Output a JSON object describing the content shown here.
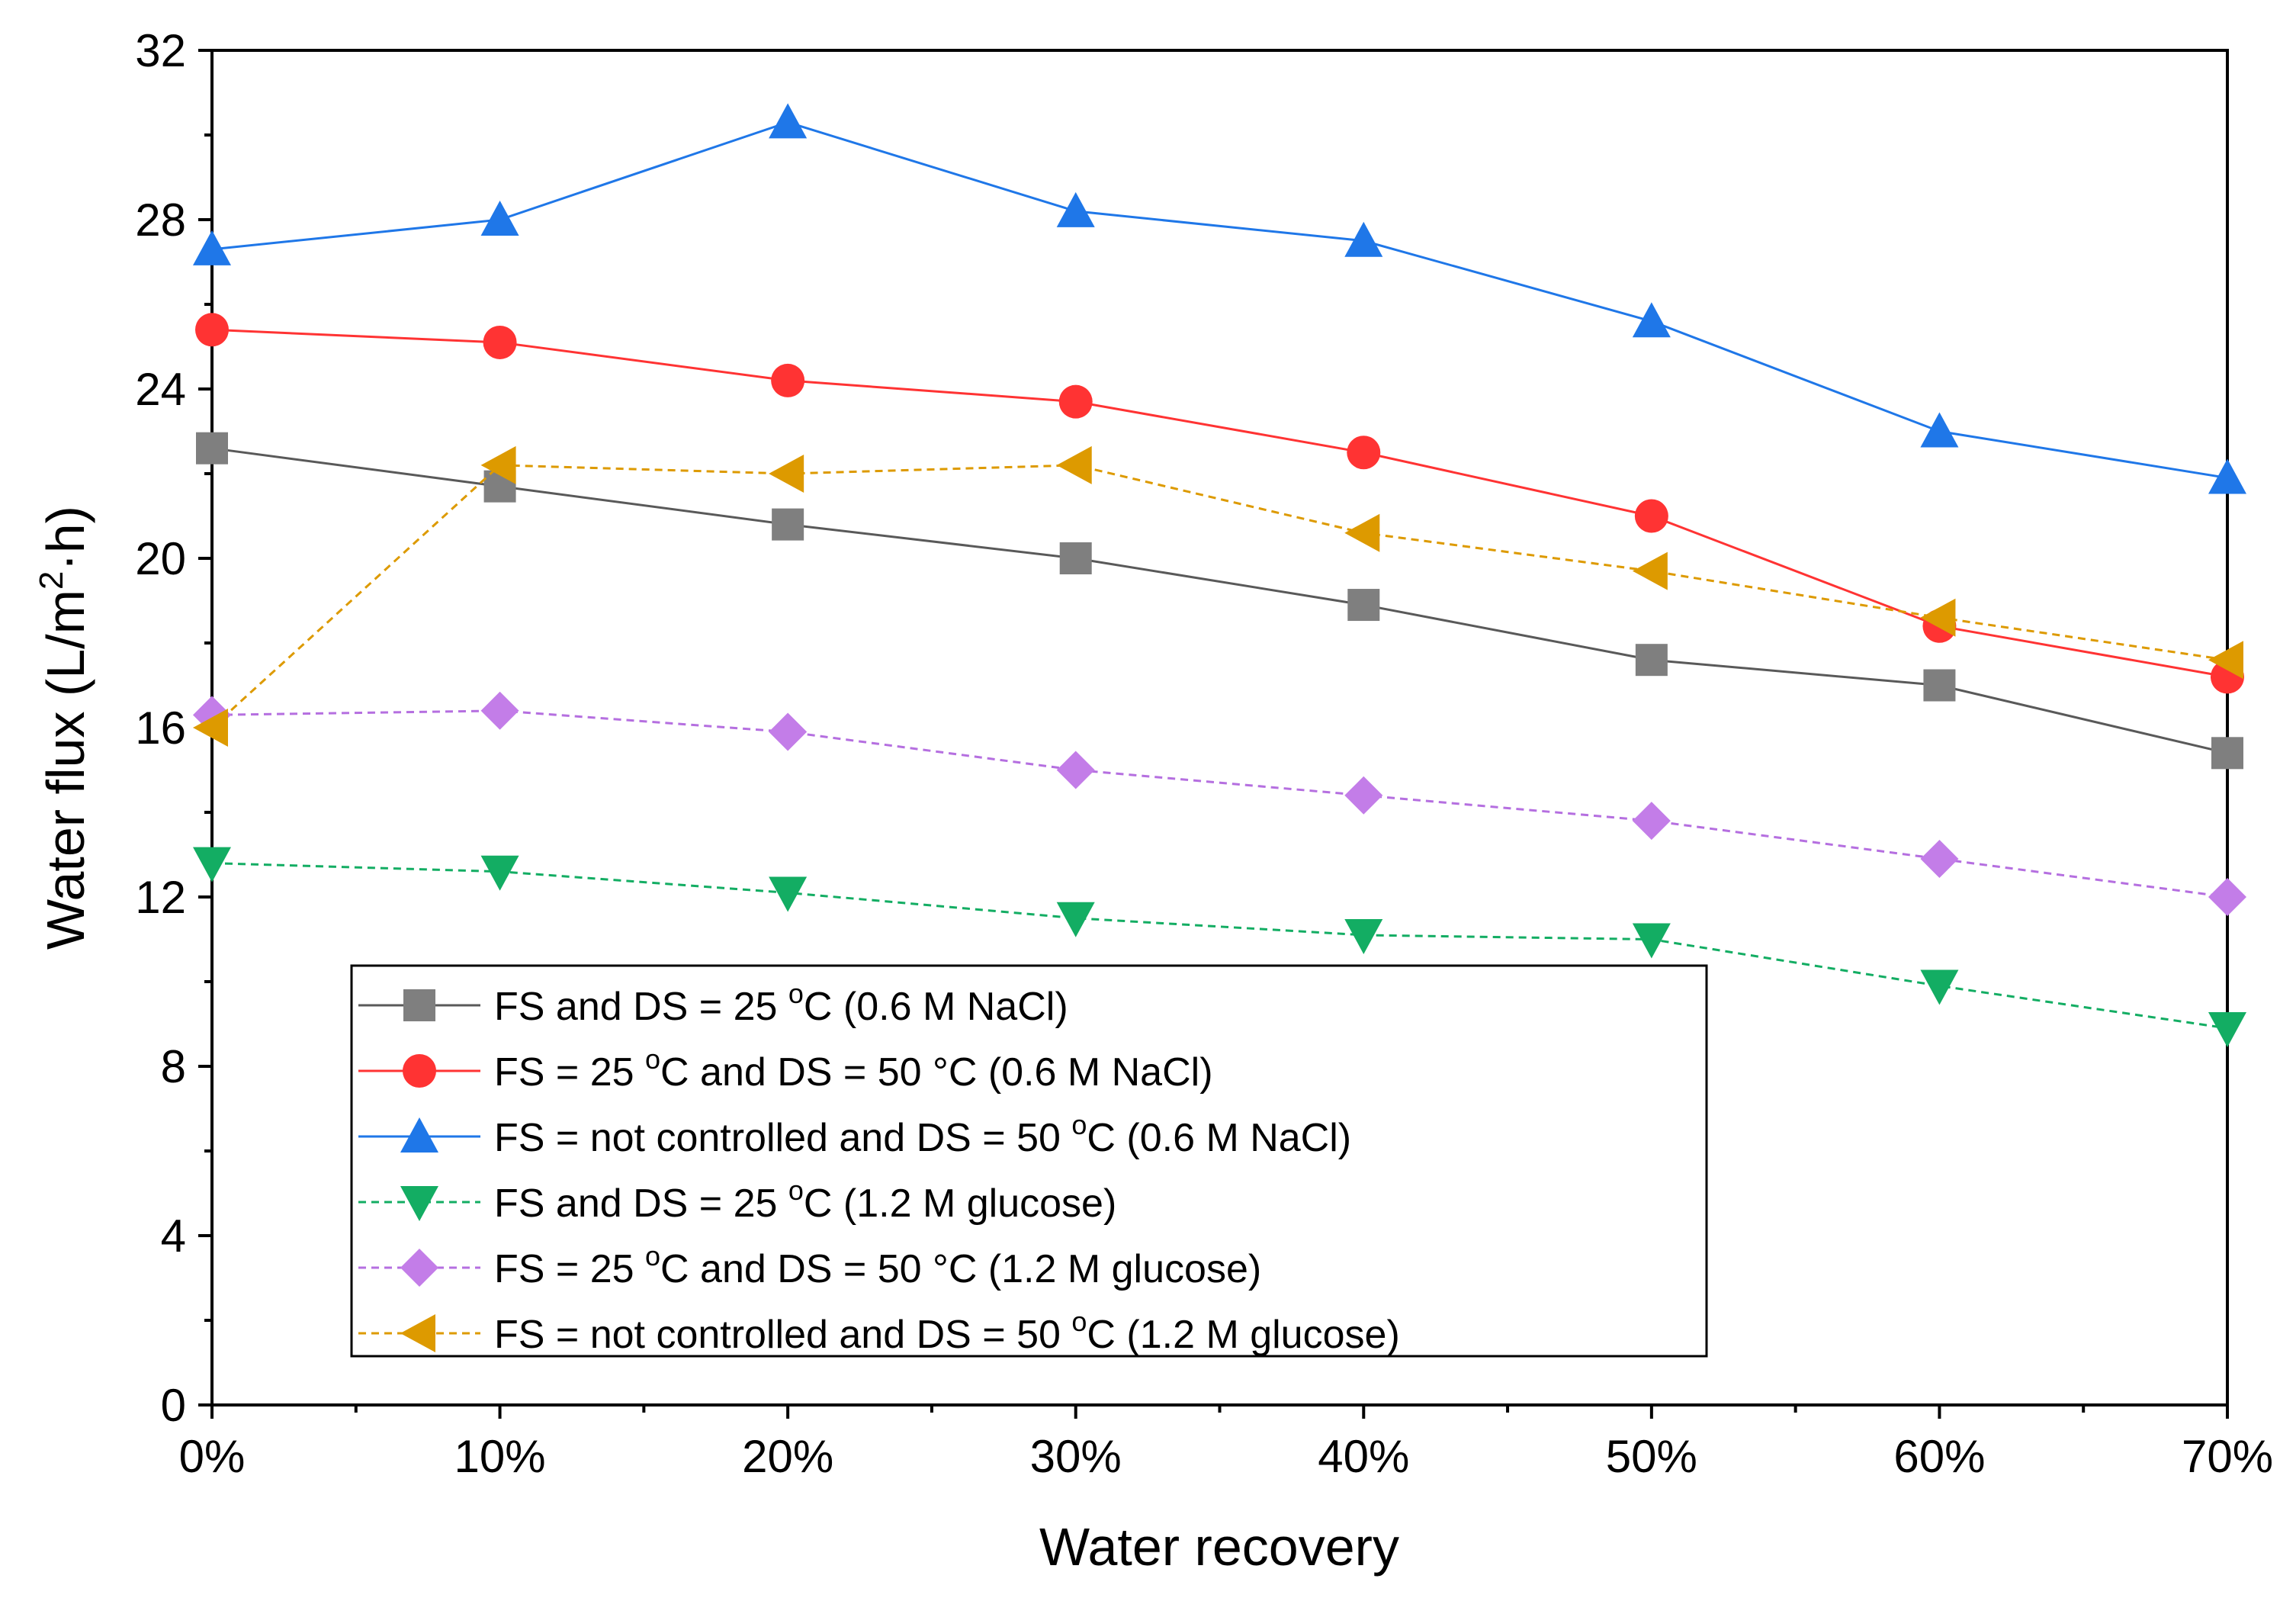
{
  "chart_data": {
    "type": "line",
    "title": "",
    "xlabel": "Water recovery",
    "ylabel": "Water flux (L/m²·h)",
    "ylabel_parts": {
      "prefix": "Water flux (L/m",
      "sup": "2",
      "suffix": "·h)"
    },
    "xlim": [
      0,
      70
    ],
    "ylim": [
      0,
      32
    ],
    "grid": false,
    "legend_position": "bottom-left",
    "x": [
      0,
      10,
      20,
      30,
      40,
      50,
      60,
      70
    ],
    "x_tick_labels": [
      "0%",
      "10%",
      "20%",
      "30%",
      "40%",
      "50%",
      "60%",
      "70%"
    ],
    "y_ticks": [
      0,
      4,
      8,
      12,
      16,
      20,
      24,
      28,
      32
    ],
    "y_tick_labels": [
      "0",
      "4",
      "8",
      "12",
      "16",
      "20",
      "24",
      "28",
      "32"
    ],
    "series": [
      {
        "name": "FS and DS = 25 °C (0.6 M NaCl)",
        "label_parts": {
          "before": "FS and DS = 25 ",
          "sup": "o",
          "after": "C (0.6 M NaCl)"
        },
        "color": "#7f7f7f",
        "line_color": "#595959",
        "marker": "square",
        "dashed": false,
        "values": [
          22.6,
          21.7,
          20.8,
          20.0,
          18.9,
          17.6,
          17.0,
          15.4
        ]
      },
      {
        "name": "FS = 25 °C and DS = 50 °C (0.6 M NaCl)",
        "label_parts": {
          "before": "FS = 25 ",
          "sup": "o",
          "after": "C and DS = 50 °C (0.6 M NaCl)"
        },
        "color": "#ff3333",
        "line_color": "#ff3333",
        "marker": "circle",
        "dashed": false,
        "values": [
          25.4,
          25.1,
          24.2,
          23.7,
          22.5,
          21.0,
          18.4,
          17.2
        ]
      },
      {
        "name": "FS = not controlled and DS = 50 °C (0.6 M NaCl)",
        "label_parts": {
          "before": "FS = not controlled and DS = 50 ",
          "sup": "o",
          "after": "C (0.6 M NaCl)"
        },
        "color": "#1f77e8",
        "line_color": "#1f77e8",
        "marker": "triangle-up",
        "dashed": false,
        "values": [
          27.3,
          28.0,
          30.3,
          28.2,
          27.5,
          25.6,
          23.0,
          21.9
        ]
      },
      {
        "name": "FS and DS = 25 °C (1.2 M glucose)",
        "label_parts": {
          "before": "FS and DS = 25 ",
          "sup": "o",
          "after": "C (1.2 M glucose)"
        },
        "color": "#13ad63",
        "line_color": "#13ad63",
        "marker": "triangle-down",
        "dashed": true,
        "values": [
          12.8,
          12.6,
          12.1,
          11.5,
          11.1,
          11.0,
          9.9,
          8.9
        ]
      },
      {
        "name": "FS = 25 °C and DS = 50 °C (1.2 M glucose)",
        "label_parts": {
          "before": "FS = 25 ",
          "sup": "o",
          "after": "C and DS = 50 °C (1.2 M glucose)"
        },
        "color": "#c37de8",
        "line_color": "#b56fe0",
        "marker": "diamond",
        "dashed": true,
        "values": [
          16.3,
          16.4,
          15.9,
          15.0,
          14.4,
          13.8,
          12.9,
          12.0
        ]
      },
      {
        "name": "FS = not controlled and DS = 50 °C (1.2 M glucose)",
        "label_parts": {
          "before": "FS = not controlled and DS = 50 ",
          "sup": "o",
          "after": "C (1.2 M glucose)"
        },
        "color": "#dd9a00",
        "line_color": "#dd9a00",
        "marker": "triangle-left",
        "dashed": true,
        "values": [
          16.0,
          22.2,
          22.0,
          22.2,
          20.6,
          19.7,
          18.6,
          17.6
        ]
      }
    ]
  }
}
